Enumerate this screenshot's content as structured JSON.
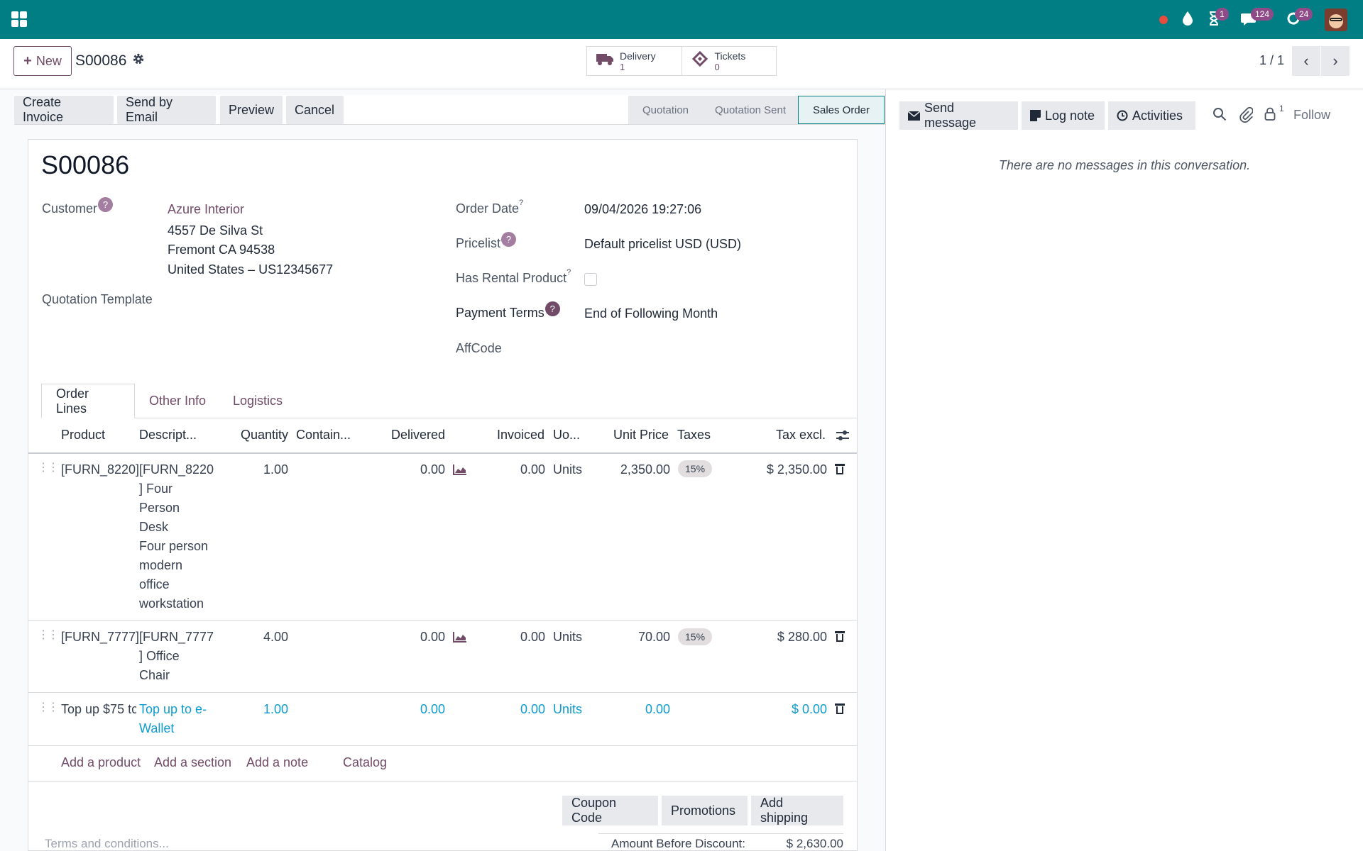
{
  "topbar": {
    "badges": {
      "activities": "1",
      "messages": "124",
      "updates": "24"
    },
    "icons": [
      "apps-icon",
      "record-dot-icon",
      "drop-icon",
      "hourglass-icon",
      "chat-icon",
      "refresh-icon",
      "user-avatar"
    ]
  },
  "control": {
    "new_label": "New",
    "record_name": "S00086",
    "smart_buttons": [
      {
        "label": "Delivery",
        "value": "1",
        "icon": "truck-icon"
      },
      {
        "label": "Tickets",
        "value": "0",
        "icon": "ticket-icon"
      }
    ],
    "pager": "1 / 1"
  },
  "actions": [
    "Create Invoice",
    "Send by Email",
    "Preview",
    "Cancel"
  ],
  "stages": [
    {
      "label": "Quotation",
      "active": false
    },
    {
      "label": "Quotation Sent",
      "active": false
    },
    {
      "label": "Sales Order",
      "active": true
    }
  ],
  "form": {
    "title": "S00086",
    "customer_label": "Customer",
    "customer_name": "Azure Interior",
    "address": [
      "4557 De Silva St",
      "Fremont CA 94538",
      "United States – US12345677"
    ],
    "quotation_template_label": "Quotation Template",
    "order_date_label": "Order Date",
    "order_date": "09/04/2026 19:27:06",
    "pricelist_label": "Pricelist",
    "pricelist": "Default pricelist USD (USD)",
    "rental_label": "Has Rental Product",
    "rental_checked": false,
    "payment_terms_label": "Payment Terms",
    "payment_terms": "End of Following Month",
    "affcode_label": "AffCode",
    "help_mark": "?"
  },
  "tabs": [
    "Order Lines",
    "Other Info",
    "Logistics"
  ],
  "table": {
    "headers": [
      "Product",
      "Descript...",
      "Quantity",
      "Contain...",
      "Delivered",
      "Invoiced",
      "Uo...",
      "Unit Price",
      "Taxes",
      "Tax excl."
    ],
    "rows": [
      {
        "product": "[FURN_8220]",
        "description": [
          "[FURN_8220",
          "] Four",
          "Person",
          "Desk",
          "Four person",
          "modern",
          "office",
          "workstation"
        ],
        "quantity": "1.00",
        "delivered": "0.00",
        "invoiced": "0.00",
        "uom": "Units",
        "unit_price": "2,350.00",
        "tax": "15%",
        "subtotal": "$ 2,350.00"
      },
      {
        "product": "[FURN_7777]",
        "description": [
          "[FURN_7777",
          "] Office",
          "Chair"
        ],
        "quantity": "4.00",
        "delivered": "0.00",
        "invoiced": "0.00",
        "uom": "Units",
        "unit_price": "70.00",
        "tax": "15%",
        "subtotal": "$ 280.00"
      },
      {
        "product": "Top up $75 tc",
        "description": [
          "Top up to e-",
          "Wallet"
        ],
        "quantity": "1.00",
        "delivered": "0.00",
        "invoiced": "0.00",
        "uom": "Units",
        "unit_price": "0.00",
        "tax": "",
        "subtotal": "$ 0.00"
      }
    ],
    "add_links": [
      "Add a product",
      "Add a section",
      "Add a note",
      "Catalog"
    ]
  },
  "bottom_buttons": [
    "Coupon Code",
    "Promotions",
    "Add shipping"
  ],
  "terms_placeholder": "Terms and conditions...",
  "totals": {
    "amount_before_discount_label": "Amount Before Discount:",
    "amount_before_discount": "$ 2,630.00"
  },
  "chatter": {
    "send_message": "Send message",
    "log_note": "Log note",
    "activities": "Activities",
    "follower_count": "1",
    "follow": "Follow",
    "empty": "There are no messages in this conversation."
  },
  "colors": {
    "navbar": "#017e84",
    "brand": "#714b67",
    "link_blue": "#0d9ccf"
  }
}
